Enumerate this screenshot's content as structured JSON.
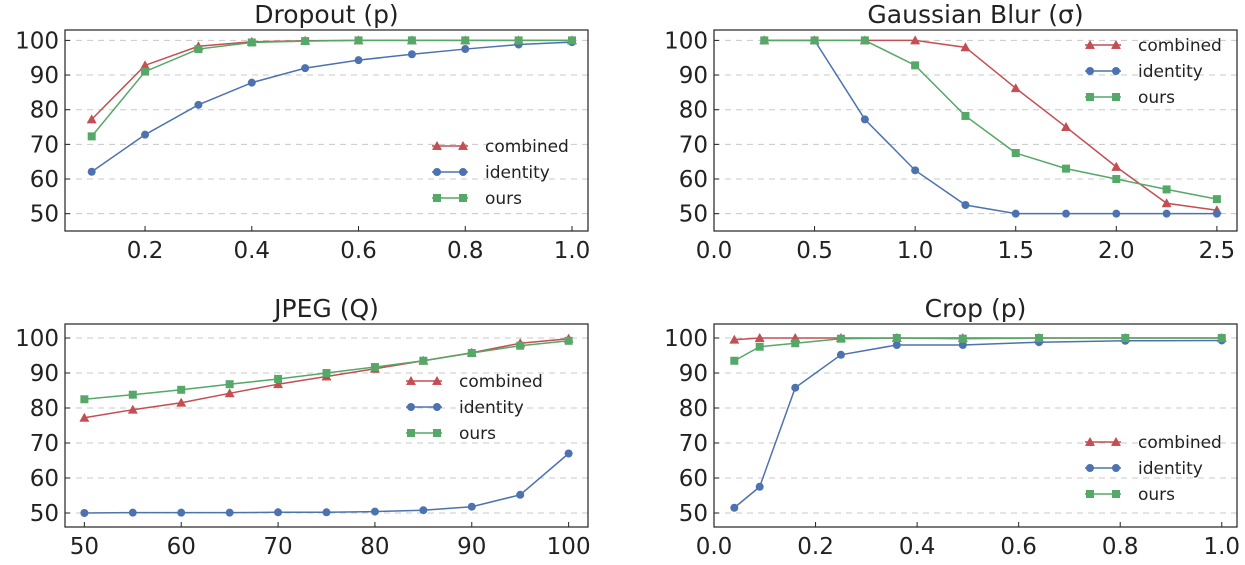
{
  "series_styles": {
    "combined": {
      "color": "#c44e52",
      "marker": "triangle"
    },
    "identity": {
      "color": "#4c72b0",
      "marker": "circle"
    },
    "ours": {
      "color": "#55a868",
      "marker": "square"
    }
  },
  "chart_data": [
    {
      "type": "line",
      "title": "Dropout (p)",
      "xlim": [
        0.05,
        1.03
      ],
      "ylim": [
        45,
        103
      ],
      "xticks": [
        0.2,
        0.4,
        0.6,
        0.8,
        1.0
      ],
      "xtick_labels": [
        "0.2",
        "0.4",
        "0.6",
        "0.8",
        "1.0"
      ],
      "yticks": [
        50,
        60,
        70,
        80,
        90,
        100
      ],
      "ytick_labels": [
        "50",
        "60",
        "70",
        "80",
        "90",
        "100"
      ],
      "grid": "horizontal dashed",
      "legend_position": "lower-right",
      "x": [
        0.1,
        0.2,
        0.3,
        0.4,
        0.5,
        0.6,
        0.7,
        0.8,
        0.9,
        1.0
      ],
      "series": [
        {
          "name": "combined",
          "values": [
            77.2,
            92.8,
            98.3,
            99.6,
            99.9,
            100,
            100,
            100,
            100,
            100
          ]
        },
        {
          "name": "identity",
          "values": [
            62.1,
            72.8,
            81.4,
            87.8,
            92.0,
            94.3,
            96.0,
            97.5,
            98.8,
            99.5
          ]
        },
        {
          "name": "ours",
          "values": [
            72.3,
            91.0,
            97.5,
            99.4,
            99.8,
            100,
            100,
            100,
            100,
            100
          ]
        }
      ]
    },
    {
      "type": "line",
      "title": "Gaussian Blur (σ)",
      "xlim": [
        0.0,
        2.6
      ],
      "ylim": [
        45,
        103
      ],
      "xticks": [
        0.0,
        0.5,
        1.0,
        1.5,
        2.0,
        2.5
      ],
      "xtick_labels": [
        "0.0",
        "0.5",
        "1.0",
        "1.5",
        "2.0",
        "2.5"
      ],
      "yticks": [
        50,
        60,
        70,
        80,
        90,
        100
      ],
      "ytick_labels": [
        "50",
        "60",
        "70",
        "80",
        "90",
        "100"
      ],
      "grid": "horizontal dashed",
      "legend_position": "upper-right",
      "x": [
        0.25,
        0.5,
        0.75,
        1.0,
        1.25,
        1.5,
        1.75,
        2.0,
        2.25,
        2.5
      ],
      "series": [
        {
          "name": "combined",
          "values": [
            100,
            100,
            100,
            100,
            98,
            86.2,
            75.0,
            63.5,
            53.0,
            51.0
          ]
        },
        {
          "name": "identity",
          "values": [
            100,
            100,
            77.2,
            62.5,
            52.5,
            50.0,
            50.0,
            50.0,
            50.0,
            50.0
          ]
        },
        {
          "name": "ours",
          "values": [
            100,
            100,
            100,
            92.8,
            78.2,
            67.5,
            63.0,
            60.0,
            57.0,
            54.2
          ]
        }
      ]
    },
    {
      "type": "line",
      "title": "JPEG (Q)",
      "xlim": [
        48,
        102
      ],
      "ylim": [
        46,
        104
      ],
      "xticks": [
        50,
        60,
        70,
        80,
        90,
        100
      ],
      "xtick_labels": [
        "50",
        "60",
        "70",
        "80",
        "90",
        "100"
      ],
      "yticks": [
        50,
        60,
        70,
        80,
        90,
        100
      ],
      "ytick_labels": [
        "50",
        "60",
        "70",
        "80",
        "90",
        "100"
      ],
      "grid": "horizontal dashed",
      "legend_position": "center-right",
      "x": [
        50,
        55,
        60,
        65,
        70,
        75,
        80,
        85,
        90,
        95,
        100
      ],
      "series": [
        {
          "name": "combined",
          "values": [
            77.2,
            79.5,
            81.5,
            84.2,
            86.8,
            89.0,
            91.2,
            93.5,
            95.8,
            98.5,
            99.8
          ]
        },
        {
          "name": "identity",
          "values": [
            50.0,
            50.1,
            50.1,
            50.1,
            50.2,
            50.2,
            50.4,
            50.8,
            51.8,
            55.2,
            67.0
          ]
        },
        {
          "name": "ours",
          "values": [
            82.5,
            83.8,
            85.2,
            86.8,
            88.3,
            90.0,
            91.7,
            93.5,
            95.7,
            97.8,
            99.2
          ]
        }
      ]
    },
    {
      "type": "line",
      "title": "Crop (p)",
      "xlim": [
        0.0,
        1.03
      ],
      "ylim": [
        46,
        104
      ],
      "xticks": [
        0.0,
        0.2,
        0.4,
        0.6,
        0.8,
        1.0
      ],
      "xtick_labels": [
        "0.0",
        "0.2",
        "0.4",
        "0.6",
        "0.8",
        "1.0"
      ],
      "yticks": [
        50,
        60,
        70,
        80,
        90,
        100
      ],
      "ytick_labels": [
        "50",
        "60",
        "70",
        "80",
        "90",
        "100"
      ],
      "grid": "horizontal dashed",
      "legend_position": "lower-right",
      "x": [
        0.04,
        0.09,
        0.16,
        0.25,
        0.36,
        0.49,
        0.64,
        0.81,
        1.0
      ],
      "series": [
        {
          "name": "combined",
          "values": [
            99.5,
            100,
            100,
            100,
            100,
            100,
            100,
            100,
            100
          ]
        },
        {
          "name": "identity",
          "values": [
            51.5,
            57.5,
            85.8,
            95.2,
            98.0,
            98.0,
            98.8,
            99.2,
            99.3
          ]
        },
        {
          "name": "ours",
          "values": [
            93.5,
            97.5,
            98.5,
            99.8,
            100,
            99.8,
            100,
            100,
            100
          ]
        }
      ]
    }
  ]
}
